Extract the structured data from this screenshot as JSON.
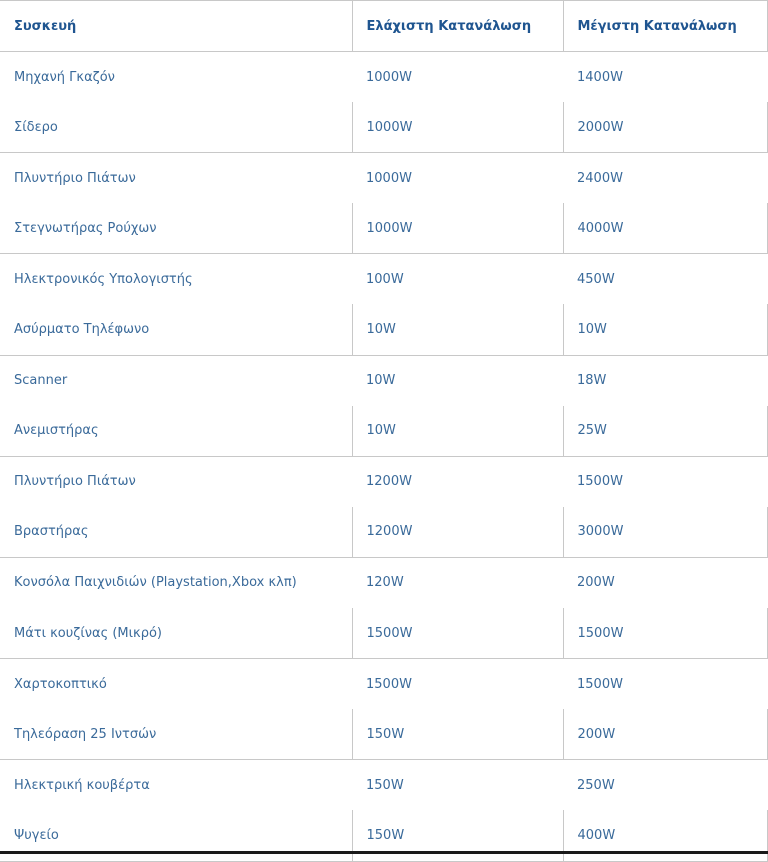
{
  "table": {
    "headers": [
      "Συσκευή",
      "Ελάχιστη Κατανάλωση",
      "Μέγιστη Κατανάλωση"
    ],
    "rows": [
      [
        "Μηχανή Γκαζόν",
        "1000W",
        "1400W"
      ],
      [
        "Σίδερο",
        "1000W",
        "2000W"
      ],
      [
        "Πλυντήριο Πιάτων",
        "1000W",
        "2400W"
      ],
      [
        "Στεγνωτήρας Ρούχων",
        "1000W",
        "4000W"
      ],
      [
        "Ηλεκτρονικός Υπολογιστής",
        "100W",
        "450W"
      ],
      [
        "Ασύρματο Τηλέφωνο",
        "10W",
        "10W"
      ],
      [
        "Scanner",
        "10W",
        "18W"
      ],
      [
        "Ανεμιστήρας",
        "10W",
        "25W"
      ],
      [
        "Πλυντήριο Πιάτων",
        "1200W",
        "1500W"
      ],
      [
        "Βραστήρας",
        "1200W",
        "3000W"
      ],
      [
        "Κονσόλα Παιχνιδιών (Playstation,Xbox κλπ)",
        "120W",
        "200W"
      ],
      [
        "Μάτι κουζίνας (Μικρό)",
        "1500W",
        "1500W"
      ],
      [
        "Χαρτοκοπτικό",
        "1500W",
        "1500W"
      ],
      [
        "Τηλεόραση 25 Ιντσών",
        "150W",
        "200W"
      ],
      [
        "Ηλεκτρική κουβέρτα",
        "150W",
        "250W"
      ],
      [
        "Ψυγείο",
        "150W",
        "400W"
      ]
    ]
  },
  "colors": {
    "header_text": "#1f5590",
    "cell_text": "#3a6a9a",
    "border": "#c8c8c8"
  }
}
